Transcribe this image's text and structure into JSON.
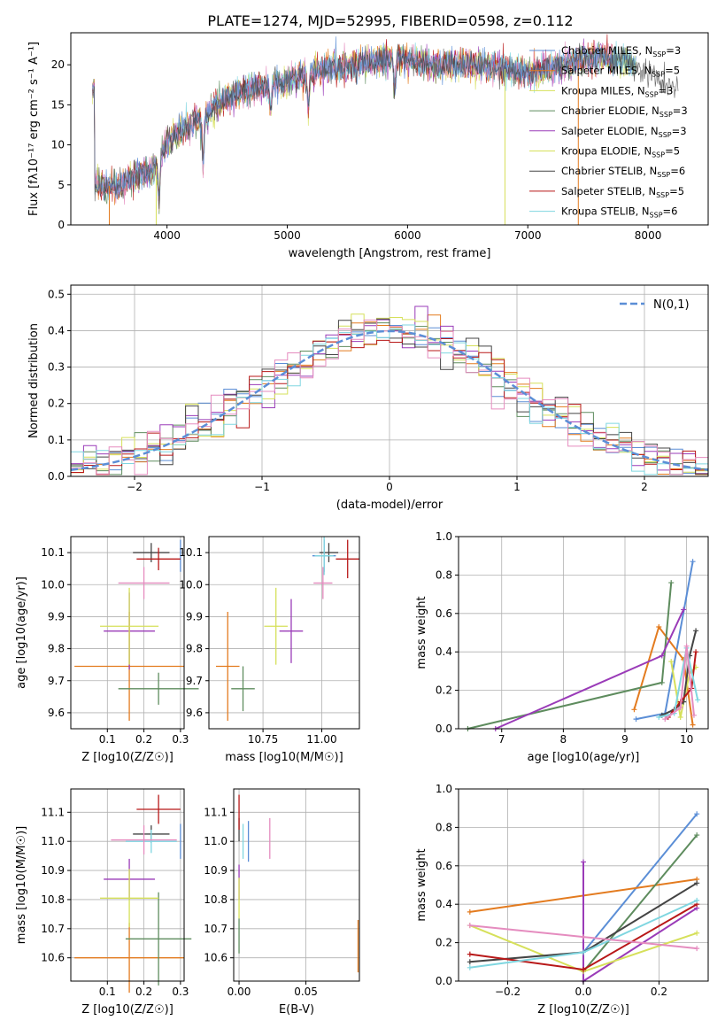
{
  "title": "PLATE=1274, MJD=52995, FIBERID=0598, z=0.112",
  "colors": {
    "blue": "#5b8ed6",
    "orange": "#e37b1f",
    "green": "#5e8c5e",
    "purple": "#9a3bb8",
    "yellow": "#d6e05a",
    "darkgray": "#444444",
    "red": "#b81818",
    "cyan": "#7fd6e0",
    "pink": "#e58cbf"
  },
  "chart_data": [
    {
      "id": "spectrum",
      "type": "line",
      "xlabel": "wavelength [Angstrom, rest frame]",
      "ylabel": "Flux [fλ10⁻¹⁷ erg cm⁻² s⁻¹ A⁻¹]",
      "xlim": [
        3200,
        8500
      ],
      "ylim": [
        0,
        24
      ],
      "xticks": [
        "4000",
        "5000",
        "6000",
        "7000",
        "8000"
      ],
      "yticks": [
        "0",
        "5",
        "10",
        "15",
        "20"
      ],
      "legend_position": "right",
      "legend": [
        {
          "text": "Chabrier MILES, N_SSP=3",
          "color": "blue"
        },
        {
          "text": "Salpeter MILES, N_SSP=5",
          "color": "orange"
        },
        {
          "text": "Kroupa MILES, N_SSP=3",
          "color": "yellow"
        },
        {
          "text": "Chabrier ELODIE, N_SSP=3",
          "color": "green"
        },
        {
          "text": "Salpeter ELODIE, N_SSP=3",
          "color": "purple"
        },
        {
          "text": "Kroupa ELODIE, N_SSP=5",
          "color": "yellow"
        },
        {
          "text": "Chabrier STELIB, N_SSP=6",
          "color": "darkgray"
        },
        {
          "text": "Salpeter STELIB, N_SSP=5",
          "color": "red"
        },
        {
          "text": "Kroupa STELIB, N_SSP=6",
          "color": "cyan"
        }
      ],
      "continuum": {
        "x": [
          3400,
          3600,
          3700,
          3900,
          4000,
          4100,
          4300,
          4500,
          4700,
          5000,
          5300,
          5600,
          5900,
          6200,
          6500,
          6800,
          7000,
          7200,
          7400,
          7600,
          7800,
          8000,
          8200
        ],
        "y": [
          5.0,
          4.8,
          6.0,
          7.0,
          10.5,
          11.5,
          13.5,
          16.0,
          17.0,
          18.0,
          19.5,
          20.0,
          21.0,
          20.0,
          20.0,
          19.5,
          19.0,
          19.5,
          20.5,
          21.0,
          20.5,
          19.0,
          17.0
        ]
      },
      "dips": [
        {
          "x": 3934,
          "y": 3.0
        },
        {
          "x": 4300,
          "y": 7.5
        },
        {
          "x": 4861,
          "y": 14.0
        },
        {
          "x": 5175,
          "y": 14.5
        },
        {
          "x": 5893,
          "y": 17.0
        }
      ],
      "drops": [
        {
          "x": 3520,
          "color": "orange"
        },
        {
          "x": 3910,
          "color": "yellow"
        },
        {
          "x": 6810,
          "color": "yellow"
        },
        {
          "x": 7420,
          "color": "orange"
        }
      ]
    },
    {
      "id": "residuals",
      "type": "area",
      "xlabel": "(data-model)/error",
      "ylabel": "Normed distribution",
      "xlim": [
        -2.5,
        2.5
      ],
      "ylim": [
        0,
        0.525
      ],
      "xticks": [
        "−2",
        "−1",
        "0",
        "1",
        "2"
      ],
      "yticks": [
        "0.0",
        "0.1",
        "0.2",
        "0.3",
        "0.4",
        "0.5"
      ],
      "legend": [
        {
          "text": "N(0,1)",
          "color": "blue"
        }
      ],
      "bin_width": 0.1,
      "histogram_colors": [
        "blue",
        "orange",
        "green",
        "purple",
        "yellow",
        "darkgray",
        "red",
        "cyan",
        "pink"
      ]
    },
    {
      "id": "age_vs_Z",
      "type": "scatter",
      "xlabel": "Z [log10(Z/Z☉)]",
      "ylabel": "age  [log10(age/yr)]",
      "xlim": [
        0.0,
        0.31
      ],
      "ylim": [
        9.55,
        10.15
      ],
      "xticks": [
        "0.1",
        "0.2",
        "0.3"
      ],
      "yticks": [
        "9.6",
        "9.7",
        "9.8",
        "9.9",
        "10.0",
        "10.1"
      ],
      "points": [
        {
          "x": 0.3,
          "xerr": 0.0,
          "y": 10.09,
          "yerr": 0.05,
          "color": "blue"
        },
        {
          "x": 0.16,
          "xerr": 0.15,
          "y": 9.745,
          "yerr": 0.17,
          "color": "orange"
        },
        {
          "x": 0.24,
          "xerr": 0.11,
          "y": 9.675,
          "yerr": 0.05,
          "color": "green"
        },
        {
          "x": 0.16,
          "xerr": 0.07,
          "y": 9.855,
          "yerr": 0.12,
          "color": "purple"
        },
        {
          "x": 0.16,
          "xerr": 0.08,
          "y": 9.87,
          "yerr": 0.12,
          "color": "yellow"
        },
        {
          "x": 0.22,
          "xerr": 0.05,
          "y": 10.1,
          "yerr": 0.03,
          "color": "darkgray"
        },
        {
          "x": 0.24,
          "xerr": 0.06,
          "y": 10.08,
          "yerr": 0.035,
          "color": "red"
        },
        {
          "x": 0.2,
          "xerr": 0.07,
          "y": 10.005,
          "yerr": 0.05,
          "color": "pink"
        }
      ]
    },
    {
      "id": "age_vs_mass",
      "type": "scatter",
      "xlabel": "mass [log10(M/M☉)]",
      "ylabel": "",
      "xlim": [
        10.52,
        11.16
      ],
      "ylim": [
        9.55,
        10.15
      ],
      "xticks": [
        "10.75",
        "11.00"
      ],
      "yticks": [
        "9.6",
        "9.7",
        "9.8",
        "9.9",
        "10.0",
        "10.1"
      ],
      "points": [
        {
          "x": 11.01,
          "xerr": 0.05,
          "y": 10.09,
          "yerr": 0.05,
          "color": "blue"
        },
        {
          "x": 10.6,
          "xerr": 0.05,
          "y": 9.745,
          "yerr": 0.17,
          "color": "orange"
        },
        {
          "x": 10.665,
          "xerr": 0.05,
          "y": 9.675,
          "yerr": 0.07,
          "color": "green"
        },
        {
          "x": 10.87,
          "xerr": 0.05,
          "y": 9.855,
          "yerr": 0.1,
          "color": "purple"
        },
        {
          "x": 10.805,
          "xerr": 0.05,
          "y": 9.87,
          "yerr": 0.12,
          "color": "yellow"
        },
        {
          "x": 11.03,
          "xerr": 0.04,
          "y": 10.1,
          "yerr": 0.03,
          "color": "darkgray"
        },
        {
          "x": 11.11,
          "xerr": 0.05,
          "y": 10.08,
          "yerr": 0.06,
          "color": "red"
        },
        {
          "x": 11.01,
          "xerr": 0.04,
          "y": 10.09,
          "yerr": 0.06,
          "color": "cyan"
        },
        {
          "x": 11.005,
          "xerr": 0.04,
          "y": 10.005,
          "yerr": 0.05,
          "color": "pink"
        }
      ]
    },
    {
      "id": "mass_weight_vs_age",
      "type": "line",
      "xlabel": "age  [log10(age/yr)]",
      "ylabel": "mass weight",
      "xlim": [
        6.3,
        10.35
      ],
      "ylim": [
        0,
        1.0
      ],
      "xticks": [
        "7",
        "8",
        "9",
        "10"
      ],
      "yticks": [
        "0.0",
        "0.2",
        "0.4",
        "0.6",
        "0.8",
        "1.0"
      ],
      "series": [
        {
          "color": "blue",
          "x": [
            9.18,
            9.65,
            10.1
          ],
          "y": [
            0.05,
            0.08,
            0.87
          ]
        },
        {
          "color": "orange",
          "x": [
            9.15,
            9.55,
            9.95,
            10.1
          ],
          "y": [
            0.1,
            0.53,
            0.36,
            0.02
          ]
        },
        {
          "color": "green",
          "x": [
            6.45,
            9.6,
            9.75
          ],
          "y": [
            0.0,
            0.24,
            0.76
          ]
        },
        {
          "color": "purple",
          "x": [
            6.9,
            9.6,
            9.95
          ],
          "y": [
            0.0,
            0.38,
            0.62
          ]
        },
        {
          "color": "yellow",
          "x": [
            9.75,
            9.9,
            10.05,
            10.15
          ],
          "y": [
            0.35,
            0.06,
            0.29,
            0.32
          ]
        },
        {
          "color": "darkgray",
          "x": [
            9.6,
            9.8,
            9.95,
            10.05,
            10.15
          ],
          "y": [
            0.07,
            0.1,
            0.14,
            0.38,
            0.51
          ]
        },
        {
          "color": "red",
          "x": [
            9.7,
            9.9,
            10.08,
            10.15
          ],
          "y": [
            0.06,
            0.14,
            0.21,
            0.4
          ]
        },
        {
          "color": "cyan",
          "x": [
            9.55,
            9.8,
            10.0,
            10.18
          ],
          "y": [
            0.06,
            0.08,
            0.42,
            0.15
          ]
        },
        {
          "color": "pink",
          "x": [
            9.65,
            9.9,
            10.0,
            10.12
          ],
          "y": [
            0.05,
            0.11,
            0.43,
            0.07
          ]
        }
      ]
    },
    {
      "id": "mass_vs_Z",
      "type": "scatter",
      "xlabel": "Z [log10(Z/Z☉)]",
      "ylabel": "mass [log10(M/M☉)]",
      "xlim": [
        0.0,
        0.31
      ],
      "ylim": [
        10.52,
        11.18
      ],
      "xticks": [
        "0.1",
        "0.2",
        "0.3"
      ],
      "yticks": [
        "10.6",
        "10.7",
        "10.8",
        "10.9",
        "11.0",
        "11.1"
      ],
      "points": [
        {
          "x": 0.3,
          "xerr": 0.0,
          "y": 11.0,
          "yerr": 0.06,
          "color": "blue"
        },
        {
          "x": 0.16,
          "xerr": 0.15,
          "y": 10.6,
          "yerr": 0.12,
          "color": "orange"
        },
        {
          "x": 0.24,
          "xerr": 0.09,
          "y": 10.665,
          "yerr": 0.16,
          "color": "green"
        },
        {
          "x": 0.16,
          "xerr": 0.07,
          "y": 10.87,
          "yerr": 0.07,
          "color": "purple"
        },
        {
          "x": 0.16,
          "xerr": 0.08,
          "y": 10.805,
          "yerr": 0.1,
          "color": "yellow"
        },
        {
          "x": 0.22,
          "xerr": 0.05,
          "y": 11.025,
          "yerr": 0.03,
          "color": "darkgray"
        },
        {
          "x": 0.24,
          "xerr": 0.06,
          "y": 11.11,
          "yerr": 0.05,
          "color": "red"
        },
        {
          "x": 0.22,
          "xerr": 0.07,
          "y": 11.0,
          "yerr": 0.04,
          "color": "cyan"
        },
        {
          "x": 0.2,
          "xerr": 0.09,
          "y": 11.005,
          "yerr": 0.05,
          "color": "pink"
        }
      ]
    },
    {
      "id": "mass_vs_ebv",
      "type": "scatter",
      "xlabel": "E(B-V)",
      "ylabel": "",
      "xlim": [
        -0.004,
        0.09
      ],
      "ylim": [
        10.52,
        11.18
      ],
      "xticks": [
        "0.00",
        "0.05"
      ],
      "yticks": [
        "10.6",
        "10.7",
        "10.8",
        "10.9",
        "11.0",
        "11.1"
      ],
      "points": [
        {
          "x": 0.007,
          "y": 11.0,
          "yerr": 0.07,
          "color": "blue"
        },
        {
          "x": 0.089,
          "y": 10.64,
          "yerr": 0.09,
          "color": "orange"
        },
        {
          "x": 0.0,
          "y": 10.675,
          "yerr": 0.06,
          "color": "green"
        },
        {
          "x": 0.0,
          "y": 10.86,
          "yerr": 0.06,
          "color": "purple"
        },
        {
          "x": 0.0,
          "y": 10.805,
          "yerr": 0.07,
          "color": "yellow"
        },
        {
          "x": 0.0,
          "y": 11.04,
          "yerr": 0.04,
          "color": "darkgray"
        },
        {
          "x": 0.0,
          "y": 11.1,
          "yerr": 0.06,
          "color": "red"
        },
        {
          "x": 0.003,
          "y": 11.0,
          "yerr": 0.06,
          "color": "cyan"
        },
        {
          "x": 0.023,
          "y": 11.01,
          "yerr": 0.07,
          "color": "pink"
        }
      ]
    },
    {
      "id": "mass_weight_vs_Z",
      "type": "line",
      "xlabel": "Z [log10(Z/Z☉)]",
      "ylabel": "mass weight",
      "xlim": [
        -0.33,
        0.33
      ],
      "ylim": [
        0,
        1.0
      ],
      "xticks": [
        "−0.2",
        "0.0",
        "0.2"
      ],
      "yticks": [
        "0.0",
        "0.2",
        "0.4",
        "0.6",
        "0.8",
        "1.0"
      ],
      "series": [
        {
          "color": "blue",
          "x": [
            0.0,
            0.3
          ],
          "y": [
            0.15,
            0.87
          ]
        },
        {
          "color": "orange",
          "x": [
            -0.3,
            0.3
          ],
          "y": [
            0.36,
            0.53
          ]
        },
        {
          "color": "green",
          "x": [
            0.0,
            0.3
          ],
          "y": [
            0.05,
            0.76
          ]
        },
        {
          "color": "purple",
          "x": [
            0.0,
            0.0,
            0.3
          ],
          "y": [
            0.62,
            0.0,
            0.38
          ]
        },
        {
          "color": "yellow",
          "x": [
            -0.3,
            0.0,
            0.3
          ],
          "y": [
            0.29,
            0.05,
            0.25
          ]
        },
        {
          "color": "darkgray",
          "x": [
            -0.3,
            0.0,
            0.3
          ],
          "y": [
            0.1,
            0.15,
            0.51
          ]
        },
        {
          "color": "red",
          "x": [
            -0.3,
            0.0,
            0.3
          ],
          "y": [
            0.14,
            0.06,
            0.4
          ]
        },
        {
          "color": "cyan",
          "x": [
            -0.3,
            0.0,
            0.3
          ],
          "y": [
            0.07,
            0.15,
            0.42
          ]
        },
        {
          "color": "pink",
          "x": [
            -0.3,
            0.0,
            0.3
          ],
          "y": [
            0.29,
            0.23,
            0.17
          ]
        }
      ]
    }
  ]
}
